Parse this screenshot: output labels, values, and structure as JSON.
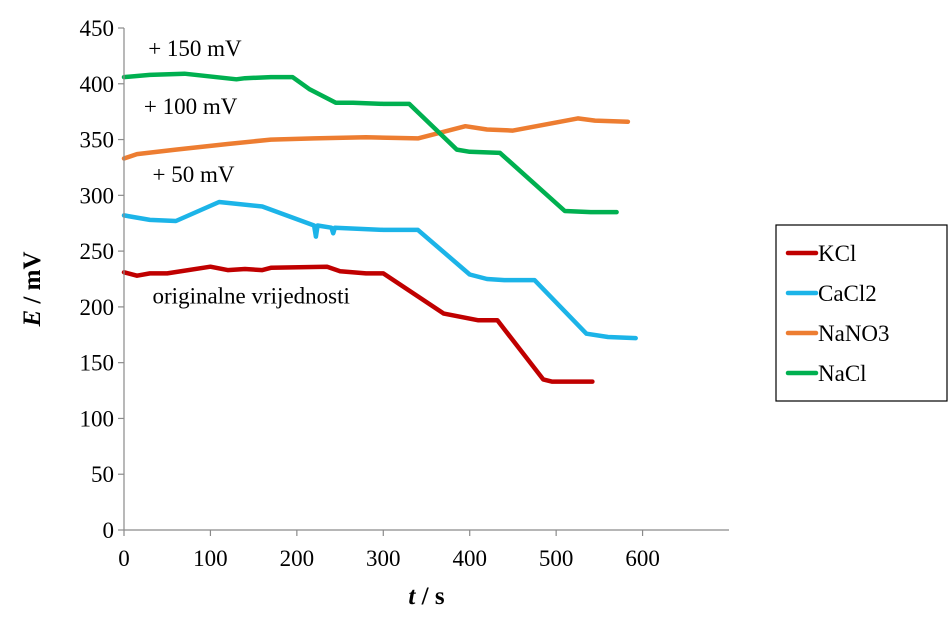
{
  "chart_data": {
    "type": "line",
    "xlabel_var": "t",
    "xlabel_unit": " / s",
    "ylabel_var": "E",
    "ylabel_unit": " / mV",
    "xlim": [
      0,
      700
    ],
    "ylim": [
      0,
      450
    ],
    "x_ticks": [
      0,
      100,
      200,
      300,
      400,
      500,
      600
    ],
    "y_ticks": [
      0,
      50,
      100,
      150,
      200,
      250,
      300,
      350,
      400,
      450
    ],
    "grid": false,
    "legend_position": "right",
    "annotations": [
      {
        "text": "+ 150 mV",
        "x": 28,
        "y": 425
      },
      {
        "text": "+ 100 mV",
        "x": 23,
        "y": 373
      },
      {
        "text": "+ 50 mV",
        "x": 33,
        "y": 312
      },
      {
        "text": "originalne vrijednosti",
        "x": 33,
        "y": 203
      }
    ],
    "series": [
      {
        "name": "KCl",
        "color": "#C00000",
        "points": [
          [
            0,
            231
          ],
          [
            15,
            228
          ],
          [
            30,
            230
          ],
          [
            50,
            230
          ],
          [
            100,
            236
          ],
          [
            120,
            233
          ],
          [
            140,
            234
          ],
          [
            160,
            233
          ],
          [
            170,
            235
          ],
          [
            235,
            236
          ],
          [
            250,
            232
          ],
          [
            280,
            230
          ],
          [
            300,
            230
          ],
          [
            370,
            194
          ],
          [
            410,
            188
          ],
          [
            432,
            188
          ],
          [
            485,
            135
          ],
          [
            495,
            133
          ],
          [
            542,
            133
          ]
        ]
      },
      {
        "name": "CaCl2",
        "color": "#1CB4E8",
        "points": [
          [
            0,
            282
          ],
          [
            30,
            278
          ],
          [
            60,
            277
          ],
          [
            110,
            294
          ],
          [
            160,
            290
          ],
          [
            220,
            273
          ],
          [
            222,
            263
          ],
          [
            224,
            273
          ],
          [
            240,
            271
          ],
          [
            242,
            266
          ],
          [
            244,
            271
          ],
          [
            300,
            269
          ],
          [
            340,
            269
          ],
          [
            400,
            229
          ],
          [
            420,
            225
          ],
          [
            440,
            224
          ],
          [
            475,
            224
          ],
          [
            535,
            176
          ],
          [
            560,
            173
          ],
          [
            592,
            172
          ]
        ]
      },
      {
        "name": "NaNO3",
        "color": "#ED7D31",
        "points": [
          [
            0,
            333
          ],
          [
            15,
            337
          ],
          [
            60,
            341
          ],
          [
            120,
            346
          ],
          [
            170,
            350
          ],
          [
            220,
            351
          ],
          [
            280,
            352
          ],
          [
            340,
            351
          ],
          [
            395,
            362
          ],
          [
            420,
            359
          ],
          [
            450,
            358
          ],
          [
            525,
            369
          ],
          [
            545,
            367
          ],
          [
            583,
            366
          ]
        ]
      },
      {
        "name": "NaCl",
        "color": "#00B050",
        "points": [
          [
            0,
            406
          ],
          [
            30,
            408
          ],
          [
            70,
            409
          ],
          [
            130,
            404
          ],
          [
            140,
            405
          ],
          [
            170,
            406
          ],
          [
            195,
            406
          ],
          [
            215,
            395
          ],
          [
            245,
            383
          ],
          [
            265,
            383
          ],
          [
            300,
            382
          ],
          [
            330,
            382
          ],
          [
            385,
            341
          ],
          [
            400,
            339
          ],
          [
            435,
            338
          ],
          [
            510,
            286
          ],
          [
            540,
            285
          ],
          [
            570,
            285
          ]
        ]
      }
    ]
  }
}
